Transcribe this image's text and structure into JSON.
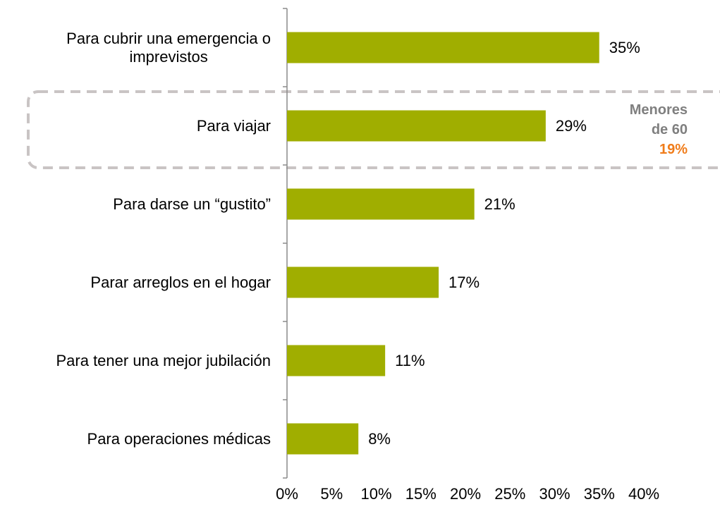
{
  "chart_data": {
    "type": "barh",
    "categories": [
      "Para cubrir una emergencia o\nimprevistos",
      "Para viajar",
      "Para darse un “gustito”",
      "Parar arreglos en el hogar",
      "Para tener una mejor jubilación",
      "Para operaciones médicas"
    ],
    "values": [
      35,
      29,
      21,
      17,
      11,
      8
    ],
    "value_labels": [
      "35%",
      "29%",
      "21%",
      "17%",
      "11%",
      "8%"
    ],
    "color": "#a0ae00",
    "xlim": [
      0,
      40
    ],
    "xticks": [
      {
        "value": 0,
        "label": "0%"
      },
      {
        "value": 5,
        "label": "5%"
      },
      {
        "value": 10,
        "label": "10%"
      },
      {
        "value": 15,
        "label": "15%"
      },
      {
        "value": 20,
        "label": "20%"
      },
      {
        "value": 25,
        "label": "25%"
      },
      {
        "value": 30,
        "label": "30%"
      },
      {
        "value": 35,
        "label": "35%"
      },
      {
        "value": 40,
        "label": "40%"
      }
    ],
    "annotation": {
      "text": "Menores de 60",
      "highlight": "19%"
    }
  }
}
